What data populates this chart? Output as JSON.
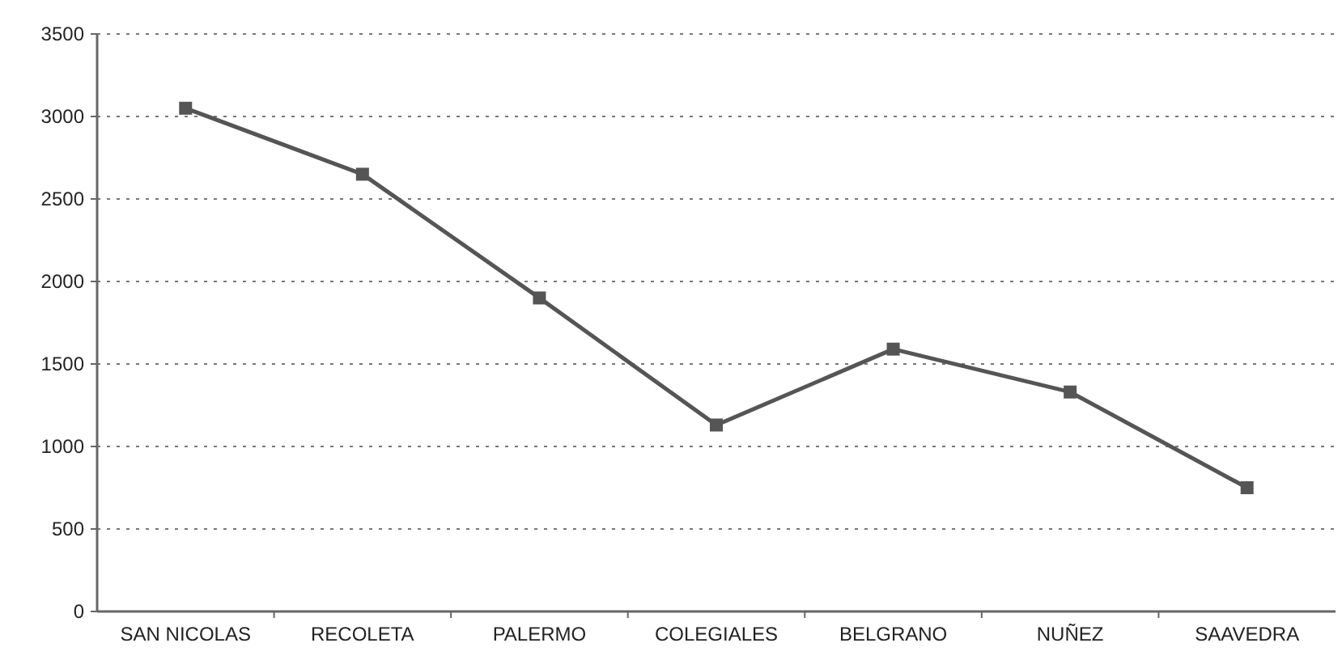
{
  "chart_data": {
    "type": "line",
    "categories": [
      "SAN NICOLAS",
      "RECOLETA",
      "PALERMO",
      "COLEGIALES",
      "BELGRANO",
      "NUÑEZ",
      "SAAVEDRA"
    ],
    "series": [
      {
        "color": "#555555",
        "values": [
          3050,
          2650,
          1900,
          1130,
          1590,
          1330,
          750
        ]
      }
    ],
    "ylim": [
      0,
      3500
    ],
    "yticks": [
      0,
      500,
      1000,
      1500,
      2000,
      2500,
      3000,
      3500
    ],
    "grid": "y",
    "marker": "square",
    "line_style": "solid"
  }
}
